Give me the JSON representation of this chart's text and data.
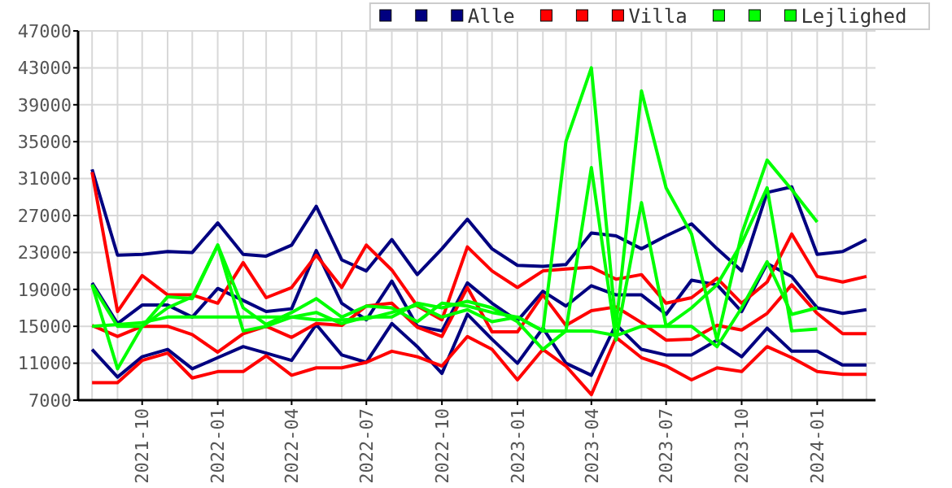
{
  "chart_data": {
    "type": "line",
    "x": [
      "2021-08",
      "2021-09",
      "2021-10",
      "2021-11",
      "2021-12",
      "2022-01",
      "2022-02",
      "2022-03",
      "2022-04",
      "2022-05",
      "2022-06",
      "2022-07",
      "2022-08",
      "2022-09",
      "2022-10",
      "2022-11",
      "2022-12",
      "2023-01",
      "2023-02",
      "2023-03",
      "2023-04",
      "2023-05",
      "2023-06",
      "2023-07",
      "2023-08",
      "2023-09",
      "2023-10",
      "2023-11",
      "2023-12",
      "2024-01",
      "2024-02",
      "2024-03"
    ],
    "xlim": [
      "2021-07-15",
      "2024-03-12"
    ],
    "xticks": [
      "2021-10",
      "2022-01",
      "2022-04",
      "2022-07",
      "2022-10",
      "2023-01",
      "2023-04",
      "2023-07",
      "2023-10",
      "2024-01"
    ],
    "ylim": [
      7000,
      47000
    ],
    "yticks": [
      7000,
      11000,
      15000,
      19000,
      23000,
      27000,
      31000,
      35000,
      39000,
      43000,
      47000
    ],
    "grid": true,
    "legend": "top right",
    "line_style": "solid",
    "marker": "none",
    "series": [
      {
        "color": "#000080",
        "values": [
          32000,
          22700,
          22800,
          23100,
          23000,
          26200,
          22800,
          22600,
          23800,
          28000,
          22200,
          21000,
          24400,
          20600,
          23400,
          26600,
          23400,
          21600,
          21500,
          21700,
          25100,
          24800,
          23400,
          24800,
          26100,
          23400,
          21000,
          29500,
          30100,
          22800,
          23100,
          24400
        ]
      },
      {
        "color": "#000080",
        "values": [
          19700,
          15300,
          17300,
          17300,
          16000,
          19100,
          17800,
          16600,
          16900,
          23200,
          17500,
          15700,
          19900,
          15000,
          14500,
          19700,
          17500,
          15600,
          18800,
          17200,
          19400,
          18400,
          18400,
          16300,
          20000,
          19500,
          16600,
          21800,
          20400,
          17000,
          16400,
          16800
        ]
      },
      {
        "name": "Alle",
        "color": "#000080",
        "values": [
          12500,
          9500,
          11700,
          12500,
          10400,
          11600,
          12800,
          12100,
          11300,
          15200,
          11900,
          11100,
          15300,
          12800,
          9900,
          16300,
          13600,
          11000,
          14800,
          11000,
          9700,
          15200,
          12500,
          11900,
          11900,
          13500,
          11700,
          14800,
          12300,
          12300,
          10800,
          10800
        ]
      },
      {
        "color": "#ff0000",
        "values": [
          31700,
          16600,
          20500,
          18400,
          18400,
          17500,
          21900,
          18100,
          19200,
          22700,
          19200,
          23800,
          21100,
          17200,
          15700,
          23600,
          21000,
          19200,
          21000,
          21200,
          21400,
          20100,
          20600,
          17500,
          18100,
          20200,
          17500,
          19800,
          25000,
          20400,
          19800,
          20400
        ]
      },
      {
        "color": "#ff0000",
        "values": [
          15100,
          13900,
          15000,
          15000,
          14100,
          12200,
          14200,
          15000,
          13800,
          15300,
          15100,
          17200,
          17500,
          14900,
          13900,
          19200,
          14400,
          14400,
          18400,
          15100,
          16700,
          17100,
          15400,
          13500,
          13600,
          15100,
          14600,
          16400,
          19500,
          16400,
          14200,
          14200
        ]
      },
      {
        "name": "Villa",
        "color": "#ff0000",
        "values": [
          8900,
          8900,
          11300,
          12100,
          9400,
          10100,
          10100,
          11800,
          9700,
          10500,
          10500,
          11100,
          12300,
          11700,
          10700,
          13900,
          12500,
          9200,
          12500,
          10700,
          7600,
          13800,
          11600,
          10700,
          9200,
          10500,
          10100,
          12800,
          11600,
          10100,
          9800,
          9800
        ]
      },
      {
        "color": "#00ff00",
        "values": [
          19500,
          15000,
          15000,
          17000,
          18200,
          23800,
          17000,
          15200,
          16500,
          18000,
          16000,
          17200,
          17000,
          15500,
          17500,
          17200,
          16500,
          16000,
          14500,
          35000,
          43000,
          15000,
          40500,
          30000,
          25000,
          13500,
          25000,
          33000,
          29800,
          26300,
          null,
          null
        ]
      },
      {
        "color": "#00ff00",
        "values": [
          19500,
          10400,
          15000,
          18200,
          18000,
          23800,
          14500,
          15000,
          16000,
          16500,
          15300,
          16000,
          16000,
          17500,
          17000,
          17700,
          17000,
          15500,
          12500,
          14500,
          32200,
          13500,
          28400,
          15000,
          15000,
          12800,
          17000,
          22000,
          16300,
          17000,
          null,
          null
        ]
      },
      {
        "name": "Lejlighed",
        "color": "#00ff00",
        "values": [
          15000,
          15200,
          15400,
          16000,
          16000,
          16000,
          16000,
          16000,
          16000,
          15700,
          15700,
          15800,
          16500,
          17300,
          16000,
          16800,
          15500,
          16000,
          14500,
          14500,
          14500,
          14000,
          15000,
          15000,
          17000,
          19500,
          24000,
          30000,
          14500,
          14700,
          null,
          null
        ]
      }
    ]
  }
}
